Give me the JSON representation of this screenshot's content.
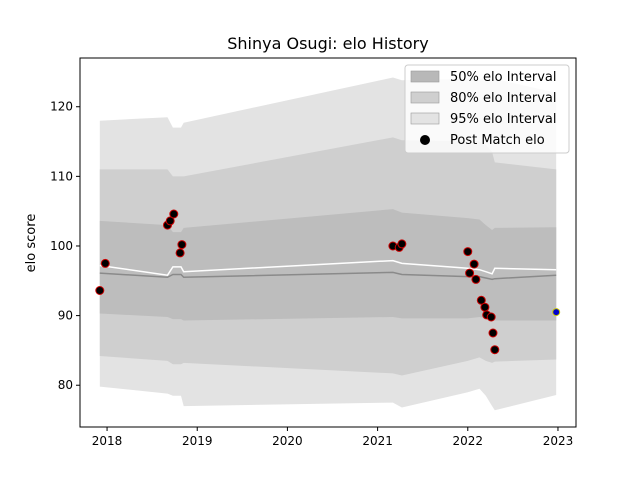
{
  "chart_data": {
    "type": "scatter",
    "title": "Shinya Osugi: elo History",
    "xlabel": "",
    "ylabel": "elo score",
    "xlim": [
      2017.7,
      2023.2
    ],
    "ylim": [
      74,
      127
    ],
    "x_ticks": [
      2018,
      2019,
      2020,
      2021,
      2022,
      2023
    ],
    "x_tick_labels": [
      "2018",
      "2019",
      "2020",
      "2021",
      "2022",
      "2023"
    ],
    "y_ticks": [
      80,
      90,
      100,
      110,
      120
    ],
    "y_tick_labels": [
      "80",
      "90",
      "100",
      "110",
      "120"
    ],
    "grid": false,
    "legend_position": "upper right",
    "legend": [
      {
        "label": "50% elo Interval",
        "kind": "band",
        "color": "#b8b8b8"
      },
      {
        "label": "80% elo Interval",
        "kind": "band",
        "color": "#cfcfcf"
      },
      {
        "label": "95% elo Interval",
        "kind": "band",
        "color": "#e3e3e3"
      },
      {
        "label": "Post Match elo",
        "kind": "marker",
        "color": "#000000"
      }
    ],
    "colors": {
      "band_95": "#e3e3e3",
      "band_80": "#cfcfcf",
      "band_50": "#bdbdbd",
      "mean_line": "#ffffff",
      "median_line": "#8a8a8a",
      "point_edge": "#cc0000",
      "point_fill": "#000000",
      "current_fill": "#0000cc",
      "current_edge": "#c8c800"
    },
    "bands": {
      "x": [
        2017.92,
        2018.67,
        2018.73,
        2018.82,
        2018.85,
        2021.17,
        2021.27,
        2022.0,
        2022.13,
        2022.2,
        2022.27,
        2022.3,
        2022.98
      ],
      "upper_95": [
        118.0,
        118.5,
        117.0,
        117.0,
        117.7,
        124.2,
        123.8,
        124.0,
        124.0,
        124.0,
        124.0,
        124.0,
        122.0
      ],
      "lower_95": [
        79.8,
        78.8,
        78.5,
        78.5,
        77.0,
        77.5,
        76.8,
        79.0,
        79.5,
        78.5,
        77.0,
        76.4,
        78.6
      ],
      "upper_80": [
        111.0,
        111.0,
        110.0,
        110.0,
        110.0,
        115.6,
        115.2,
        115.0,
        115.0,
        114.5,
        113.5,
        112.0,
        111.0
      ],
      "lower_80": [
        84.2,
        83.5,
        83.0,
        83.0,
        83.2,
        81.7,
        81.4,
        83.5,
        84.0,
        83.5,
        83.2,
        83.4,
        83.7
      ],
      "upper_50": [
        103.6,
        103.0,
        102.0,
        102.0,
        102.6,
        105.3,
        104.8,
        104.0,
        103.8,
        103.0,
        102.3,
        102.6,
        102.7
      ],
      "lower_50": [
        90.3,
        89.8,
        89.5,
        89.5,
        89.3,
        89.8,
        89.6,
        89.6,
        89.8,
        89.6,
        89.4,
        89.3,
        89.3
      ],
      "mean": [
        97.2,
        95.8,
        97.0,
        97.0,
        96.3,
        97.9,
        97.5,
        96.8,
        96.6,
        96.3,
        96.0,
        96.8,
        96.6
      ],
      "median": [
        96.1,
        95.5,
        95.9,
        95.9,
        95.5,
        96.2,
        95.9,
        95.6,
        95.6,
        95.4,
        95.2,
        95.3,
        95.8
      ]
    },
    "series": [
      {
        "name": "Post Match elo",
        "x": [
          2017.92,
          2017.98,
          2018.67,
          2018.7,
          2018.74,
          2018.81,
          2018.83,
          2021.17,
          2021.24,
          2021.27,
          2022.0,
          2022.02,
          2022.07,
          2022.09,
          2022.15,
          2022.19,
          2022.21,
          2022.26,
          2022.28,
          2022.3
        ],
        "y": [
          93.6,
          97.5,
          103.0,
          103.6,
          104.6,
          99.0,
          100.2,
          100.0,
          99.8,
          100.3,
          99.2,
          96.1,
          97.4,
          95.2,
          92.2,
          91.2,
          90.1,
          89.8,
          87.5,
          85.1
        ]
      }
    ],
    "current": {
      "x": 2022.98,
      "y": 90.5
    }
  }
}
